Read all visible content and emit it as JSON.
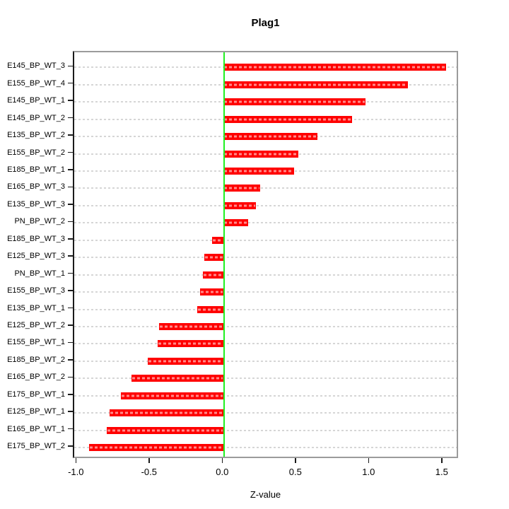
{
  "title": "Plag1",
  "x_axis_title": "Z-value",
  "chart_data": {
    "type": "bar",
    "orientation": "horizontal",
    "title": "Plag1",
    "xlabel": "Z-value",
    "ylabel": "",
    "categories": [
      "E145_BP_WT_3",
      "E155_BP_WT_4",
      "E145_BP_WT_1",
      "E145_BP_WT_2",
      "E135_BP_WT_2",
      "E155_BP_WT_2",
      "E185_BP_WT_1",
      "E165_BP_WT_3",
      "E135_BP_WT_3",
      "PN_BP_WT_2",
      "E185_BP_WT_3",
      "E125_BP_WT_3",
      "PN_BP_WT_1",
      "E155_BP_WT_3",
      "E135_BP_WT_1",
      "E125_BP_WT_2",
      "E155_BP_WT_1",
      "E185_BP_WT_2",
      "E165_BP_WT_2",
      "E175_BP_WT_1",
      "E125_BP_WT_1",
      "E165_BP_WT_1",
      "E175_BP_WT_2"
    ],
    "values": [
      1.52,
      1.26,
      0.97,
      0.88,
      0.64,
      0.51,
      0.48,
      0.25,
      0.22,
      0.17,
      -0.08,
      -0.13,
      -0.14,
      -0.16,
      -0.18,
      -0.44,
      -0.45,
      -0.52,
      -0.63,
      -0.7,
      -0.78,
      -0.8,
      -0.92
    ],
    "xlim": [
      -1.02,
      1.62
    ],
    "xticks": [
      -1.0,
      -0.5,
      0.0,
      0.5,
      1.0,
      1.5
    ],
    "grid": "dashed-horizontal",
    "legend": "none",
    "colors": {
      "bar": "#ff0000",
      "zero_line": "#21f021",
      "gridline": "#d6d6d6",
      "box": "#9b9b9b",
      "axis": "#1a1a1a",
      "background": "#ffffff"
    }
  }
}
